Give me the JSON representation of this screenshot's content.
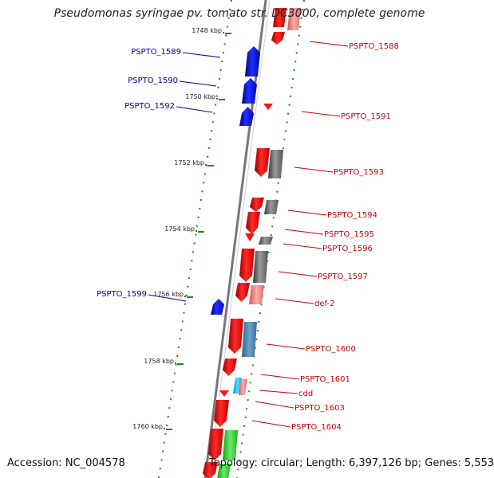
{
  "title": "Pseudomonas syringae pv. tomato str. DC3000, complete genome",
  "footer": {
    "accession": "Accession: NC_004578",
    "topology": "Topology: circular; Length: 6,397,126 bp; Genes: 5,553"
  },
  "colors": {
    "forward_gene": "#ee1111",
    "reverse_gene": "#0a12e8",
    "cds": "#666666",
    "label_right": "#cc0000",
    "label_left": "#000099",
    "axis": "#777777",
    "ticks": "#228822"
  },
  "ruler": [
    {
      "label": "1748 kbp"
    },
    {
      "label": "1750 kbp"
    },
    {
      "label": "1752 kbp"
    },
    {
      "label": "1754 kbp"
    },
    {
      "label": "1756 kbp"
    },
    {
      "label": "1758 kbp"
    },
    {
      "label": "1760 kbp"
    }
  ],
  "genes": [
    {
      "label": "PSPTO_1588",
      "strand": "forward"
    },
    {
      "label": "PSPTO_1589",
      "strand": "reverse"
    },
    {
      "label": "PSPTO_1590",
      "strand": "reverse"
    },
    {
      "label": "PSPTO_1592",
      "strand": "reverse"
    },
    {
      "label": "PSPTO_1591",
      "strand": "forward"
    },
    {
      "label": "PSPTO_1593",
      "strand": "forward"
    },
    {
      "label": "PSPTO_1594",
      "strand": "forward"
    },
    {
      "label": "PSPTO_1595",
      "strand": "forward"
    },
    {
      "label": "PSPTO_1596",
      "strand": "forward"
    },
    {
      "label": "PSPTO_1597",
      "strand": "forward"
    },
    {
      "label": "PSPTO_1599",
      "strand": "reverse"
    },
    {
      "label": "def-2",
      "strand": "forward"
    },
    {
      "label": "PSPTO_1600",
      "strand": "forward"
    },
    {
      "label": "PSPTO_1601",
      "strand": "forward"
    },
    {
      "label": "cdd",
      "strand": "forward"
    },
    {
      "label": "PSPTO_1603",
      "strand": "forward"
    },
    {
      "label": "PSPTO_1604",
      "strand": "forward"
    }
  ]
}
